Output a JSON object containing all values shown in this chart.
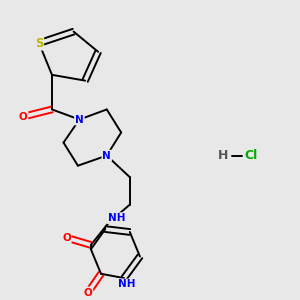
{
  "background_color": "#e8e8e8",
  "bond_color": "#000000",
  "atom_colors": {
    "N": "#0000ff",
    "O": "#ff0000",
    "S": "#b8b800",
    "C": "#000000",
    "H": "#606060",
    "Cl": "#00aa00"
  },
  "font_size": 7.5
}
